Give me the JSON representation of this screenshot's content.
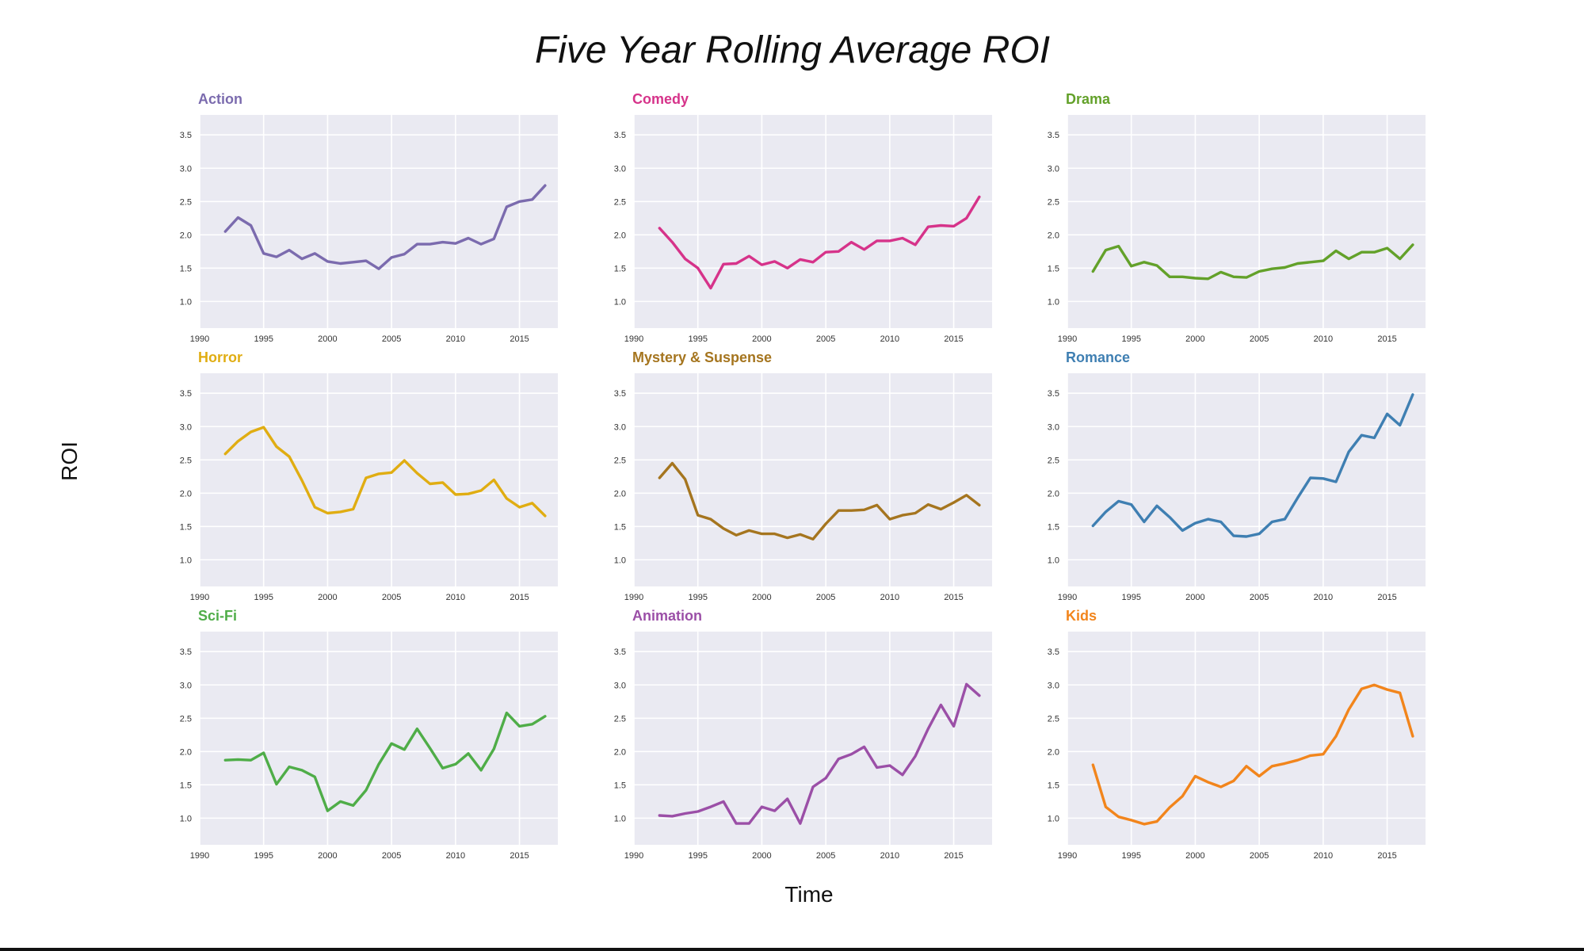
{
  "title": "Five Year Rolling Average ROI",
  "xlabel": "Time",
  "ylabel": "ROI",
  "chart_data": [
    {
      "type": "line",
      "title": "Action",
      "color": "#7b6bae",
      "xlim": [
        1990,
        2018
      ],
      "ylim": [
        0.6,
        3.8
      ],
      "xticks": [
        1990,
        1995,
        2000,
        2005,
        2010,
        2015
      ],
      "yticks": [
        1.0,
        1.5,
        2.0,
        2.5,
        3.0,
        3.5
      ],
      "x": [
        1992,
        1993,
        1994,
        1995,
        1996,
        1997,
        1998,
        1999,
        2000,
        2001,
        2002,
        2003,
        2004,
        2005,
        2006,
        2007,
        2008,
        2009,
        2010,
        2011,
        2012,
        2013,
        2014,
        2015,
        2016,
        2017
      ],
      "values": [
        2.05,
        2.26,
        2.14,
        1.72,
        1.67,
        1.77,
        1.64,
        1.72,
        1.6,
        1.57,
        1.59,
        1.61,
        1.49,
        1.66,
        1.71,
        1.86,
        1.86,
        1.89,
        1.87,
        1.95,
        1.86,
        1.94,
        2.42,
        2.5,
        2.53,
        2.74
      ]
    },
    {
      "type": "line",
      "title": "Comedy",
      "color": "#d6338a",
      "xlim": [
        1990,
        2018
      ],
      "ylim": [
        0.6,
        3.8
      ],
      "xticks": [
        1990,
        1995,
        2000,
        2005,
        2010,
        2015
      ],
      "yticks": [
        1.0,
        1.5,
        2.0,
        2.5,
        3.0,
        3.5
      ],
      "x": [
        1992,
        1993,
        1994,
        1995,
        1996,
        1997,
        1998,
        1999,
        2000,
        2001,
        2002,
        2003,
        2004,
        2005,
        2006,
        2007,
        2008,
        2009,
        2010,
        2011,
        2012,
        2013,
        2014,
        2015,
        2016,
        2017
      ],
      "values": [
        2.1,
        1.89,
        1.64,
        1.5,
        1.2,
        1.56,
        1.57,
        1.68,
        1.55,
        1.6,
        1.5,
        1.63,
        1.59,
        1.74,
        1.75,
        1.89,
        1.78,
        1.91,
        1.91,
        1.95,
        1.85,
        2.12,
        2.14,
        2.13,
        2.25,
        2.57
      ]
    },
    {
      "type": "line",
      "title": "Drama",
      "color": "#63a12a",
      "xlim": [
        1990,
        2018
      ],
      "ylim": [
        0.6,
        3.8
      ],
      "xticks": [
        1990,
        1995,
        2000,
        2005,
        2010,
        2015
      ],
      "yticks": [
        1.0,
        1.5,
        2.0,
        2.5,
        3.0,
        3.5
      ],
      "x": [
        1992,
        1993,
        1994,
        1995,
        1996,
        1997,
        1998,
        1999,
        2000,
        2001,
        2002,
        2003,
        2004,
        2005,
        2006,
        2007,
        2008,
        2009,
        2010,
        2011,
        2012,
        2013,
        2014,
        2015,
        2016,
        2017
      ],
      "values": [
        1.45,
        1.77,
        1.83,
        1.53,
        1.59,
        1.54,
        1.37,
        1.37,
        1.35,
        1.34,
        1.44,
        1.37,
        1.36,
        1.45,
        1.49,
        1.51,
        1.57,
        1.59,
        1.61,
        1.76,
        1.64,
        1.74,
        1.74,
        1.8,
        1.64,
        1.85
      ]
    },
    {
      "type": "line",
      "title": "Horror",
      "color": "#e0ad12",
      "xlim": [
        1990,
        2018
      ],
      "ylim": [
        0.6,
        3.8
      ],
      "xticks": [
        1990,
        1995,
        2000,
        2005,
        2010,
        2015
      ],
      "yticks": [
        1.0,
        1.5,
        2.0,
        2.5,
        3.0,
        3.5
      ],
      "x": [
        1992,
        1993,
        1994,
        1995,
        1996,
        1997,
        1998,
        1999,
        2000,
        2001,
        2002,
        2003,
        2004,
        2005,
        2006,
        2007,
        2008,
        2009,
        2010,
        2011,
        2012,
        2013,
        2014,
        2015,
        2016,
        2017
      ],
      "values": [
        2.59,
        2.78,
        2.92,
        2.99,
        2.7,
        2.55,
        2.19,
        1.79,
        1.7,
        1.72,
        1.76,
        2.23,
        2.29,
        2.31,
        2.49,
        2.3,
        2.14,
        2.16,
        1.98,
        1.99,
        2.04,
        2.2,
        1.92,
        1.79,
        1.85,
        1.66
      ]
    },
    {
      "type": "line",
      "title": "Mystery & Suspense",
      "color": "#a5751f",
      "xlim": [
        1990,
        2018
      ],
      "ylim": [
        0.6,
        3.8
      ],
      "xticks": [
        1990,
        1995,
        2000,
        2005,
        2010,
        2015
      ],
      "yticks": [
        1.0,
        1.5,
        2.0,
        2.5,
        3.0,
        3.5
      ],
      "x": [
        1992,
        1993,
        1994,
        1995,
        1996,
        1997,
        1998,
        1999,
        2000,
        2001,
        2002,
        2003,
        2004,
        2005,
        2006,
        2007,
        2008,
        2009,
        2010,
        2011,
        2012,
        2013,
        2014,
        2015,
        2016,
        2017
      ],
      "values": [
        2.23,
        2.45,
        2.21,
        1.67,
        1.61,
        1.47,
        1.37,
        1.44,
        1.39,
        1.39,
        1.33,
        1.38,
        1.31,
        1.54,
        1.74,
        1.74,
        1.75,
        1.82,
        1.61,
        1.67,
        1.7,
        1.83,
        1.76,
        1.86,
        1.97,
        1.82
      ]
    },
    {
      "type": "line",
      "title": "Romance",
      "color": "#3f7fb2",
      "xlim": [
        1990,
        2018
      ],
      "ylim": [
        0.6,
        3.8
      ],
      "xticks": [
        1990,
        1995,
        2000,
        2005,
        2010,
        2015
      ],
      "yticks": [
        1.0,
        1.5,
        2.0,
        2.5,
        3.0,
        3.5
      ],
      "x": [
        1992,
        1993,
        1994,
        1995,
        1996,
        1997,
        1998,
        1999,
        2000,
        2001,
        2002,
        2003,
        2004,
        2005,
        2006,
        2007,
        2008,
        2009,
        2010,
        2011,
        2012,
        2013,
        2014,
        2015,
        2016,
        2017
      ],
      "values": [
        1.51,
        1.72,
        1.88,
        1.83,
        1.57,
        1.81,
        1.64,
        1.44,
        1.55,
        1.61,
        1.57,
        1.36,
        1.35,
        1.39,
        1.57,
        1.61,
        1.93,
        2.23,
        2.22,
        2.17,
        2.62,
        2.87,
        2.83,
        3.19,
        3.02,
        3.48
      ]
    },
    {
      "type": "line",
      "title": "Sci-Fi",
      "color": "#4fad48",
      "xlim": [
        1990,
        2018
      ],
      "ylim": [
        0.6,
        3.8
      ],
      "xticks": [
        1990,
        1995,
        2000,
        2005,
        2010,
        2015
      ],
      "yticks": [
        1.0,
        1.5,
        2.0,
        2.5,
        3.0,
        3.5
      ],
      "x": [
        1992,
        1993,
        1994,
        1995,
        1996,
        1997,
        1998,
        1999,
        2000,
        2001,
        2002,
        2003,
        2004,
        2005,
        2006,
        2007,
        2008,
        2009,
        2010,
        2011,
        2012,
        2013,
        2014,
        2015,
        2016,
        2017
      ],
      "values": [
        1.87,
        1.88,
        1.87,
        1.98,
        1.51,
        1.77,
        1.72,
        1.62,
        1.11,
        1.25,
        1.19,
        1.42,
        1.81,
        2.12,
        2.03,
        2.34,
        2.05,
        1.75,
        1.81,
        1.97,
        1.72,
        2.04,
        2.58,
        2.38,
        2.41,
        2.53
      ]
    },
    {
      "type": "line",
      "title": "Animation",
      "color": "#9b4fa7",
      "xlim": [
        1990,
        2018
      ],
      "ylim": [
        0.6,
        3.8
      ],
      "xticks": [
        1990,
        1995,
        2000,
        2005,
        2010,
        2015
      ],
      "yticks": [
        1.0,
        1.5,
        2.0,
        2.5,
        3.0,
        3.5
      ],
      "x": [
        1992,
        1993,
        1994,
        1995,
        1996,
        1997,
        1998,
        1999,
        2000,
        2001,
        2002,
        2003,
        2004,
        2005,
        2006,
        2007,
        2008,
        2009,
        2010,
        2011,
        2012,
        2013,
        2014,
        2015,
        2016,
        2017
      ],
      "values": [
        1.04,
        1.03,
        1.07,
        1.1,
        1.17,
        1.25,
        0.92,
        0.92,
        1.17,
        1.11,
        1.29,
        0.92,
        1.47,
        1.6,
        1.89,
        1.96,
        2.07,
        1.76,
        1.79,
        1.65,
        1.93,
        2.34,
        2.7,
        2.38,
        3.01,
        2.84
      ]
    },
    {
      "type": "line",
      "title": "Kids",
      "color": "#f2851c",
      "xlim": [
        1990,
        2018
      ],
      "ylim": [
        0.6,
        3.8
      ],
      "xticks": [
        1990,
        1995,
        2000,
        2005,
        2010,
        2015
      ],
      "yticks": [
        1.0,
        1.5,
        2.0,
        2.5,
        3.0,
        3.5
      ],
      "x": [
        1992,
        1993,
        1994,
        1995,
        1996,
        1997,
        1998,
        1999,
        2000,
        2001,
        2002,
        2003,
        2004,
        2005,
        2006,
        2007,
        2008,
        2009,
        2010,
        2011,
        2012,
        2013,
        2014,
        2015,
        2016,
        2017
      ],
      "values": [
        1.8,
        1.17,
        1.02,
        0.97,
        0.91,
        0.95,
        1.16,
        1.33,
        1.63,
        1.54,
        1.47,
        1.56,
        1.78,
        1.63,
        1.78,
        1.82,
        1.87,
        1.94,
        1.96,
        2.23,
        2.63,
        2.94,
        3.0,
        2.93,
        2.88,
        2.23
      ]
    }
  ]
}
